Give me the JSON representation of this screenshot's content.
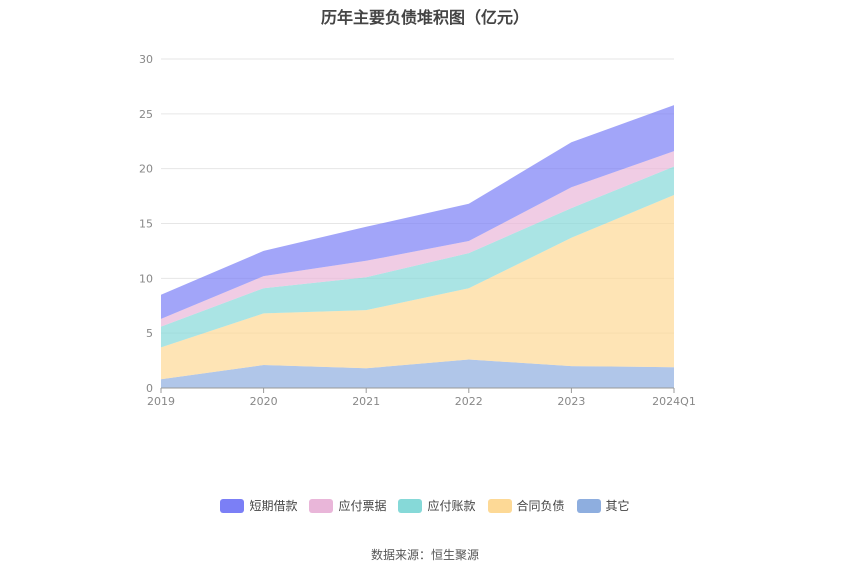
{
  "chart_data": {
    "type": "area",
    "stacked": true,
    "title": "历年主要负债堆积图（亿元）",
    "categories": [
      "2019",
      "2020",
      "2021",
      "2022",
      "2023",
      "2024Q1"
    ],
    "y_ticks": [
      "0",
      "5",
      "10",
      "15",
      "20",
      "25",
      "30"
    ],
    "ylim": [
      0,
      30
    ],
    "grid": true,
    "legend_position": "bottom",
    "series": [
      {
        "name": "其它",
        "color": "#8eaedf",
        "values": [
          0.8,
          2.1,
          1.8,
          2.6,
          2.0,
          1.9
        ]
      },
      {
        "name": "合同负债",
        "color": "#fdd996",
        "values": [
          2.9,
          4.7,
          5.3,
          6.5,
          11.7,
          15.7
        ]
      },
      {
        "name": "应付账款",
        "color": "#86d9d8",
        "values": [
          1.9,
          2.3,
          3.0,
          3.2,
          2.7,
          2.6
        ]
      },
      {
        "name": "应付票据",
        "color": "#e9b6d9",
        "values": [
          0.7,
          1.1,
          1.5,
          1.1,
          1.9,
          1.4
        ]
      },
      {
        "name": "短期借款",
        "color": "#7b7ff6",
        "values": [
          2.2,
          2.3,
          3.1,
          3.4,
          4.1,
          4.2
        ]
      }
    ],
    "legend_order": [
      "短期借款",
      "应付票据",
      "应付账款",
      "合同负债",
      "其它"
    ]
  },
  "source_text": "数据来源：恒生聚源"
}
